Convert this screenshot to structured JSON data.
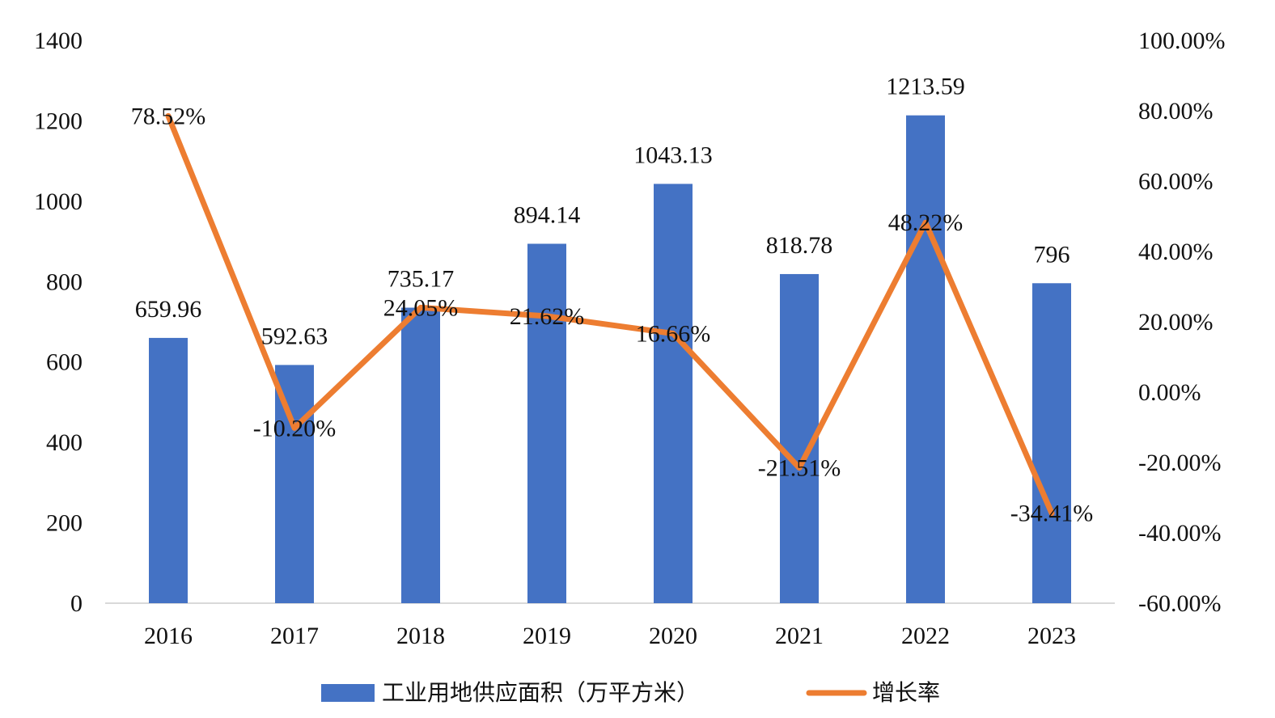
{
  "chart_data": {
    "type": "bar",
    "categories": [
      "2016",
      "2017",
      "2018",
      "2019",
      "2020",
      "2021",
      "2022",
      "2023"
    ],
    "series": [
      {
        "name": "工业用地供应面积（万平方米）",
        "type": "bar",
        "axis": "left",
        "values": [
          659.96,
          592.63,
          735.17,
          894.14,
          1043.13,
          818.78,
          1213.59,
          796
        ],
        "labels": [
          "659.96",
          "592.63",
          "735.17",
          "894.14",
          "1043.13",
          "818.78",
          "1213.59",
          "796"
        ]
      },
      {
        "name": "增长率",
        "type": "line",
        "axis": "right",
        "values": [
          78.52,
          -10.2,
          24.05,
          21.62,
          16.66,
          -21.51,
          48.22,
          -34.41
        ],
        "labels": [
          "78.52%",
          "-10.20%",
          "24.05%",
          "21.62%",
          "16.66%",
          "-21.51%",
          "48.22%",
          "-34.41%"
        ]
      }
    ],
    "left_axis": {
      "ylim": [
        0,
        1400
      ],
      "ticks": [
        0,
        200,
        400,
        600,
        800,
        1000,
        1200,
        1400
      ],
      "tick_labels": [
        "0",
        "200",
        "400",
        "600",
        "800",
        "1000",
        "1200",
        "1400"
      ]
    },
    "right_axis": {
      "ylim": [
        -60,
        100
      ],
      "ticks": [
        -60,
        -40,
        -20,
        0,
        20,
        40,
        60,
        80,
        100
      ],
      "tick_labels": [
        "-60.00%",
        "-40.00%",
        "-20.00%",
        "0.00%",
        "20.00%",
        "40.00%",
        "60.00%",
        "80.00%",
        "100.00%"
      ]
    },
    "colors": {
      "bar": "#4472C4",
      "line": "#ED7D31",
      "axis": "#D9D9D9"
    },
    "grid": false,
    "legend_position": "bottom"
  }
}
